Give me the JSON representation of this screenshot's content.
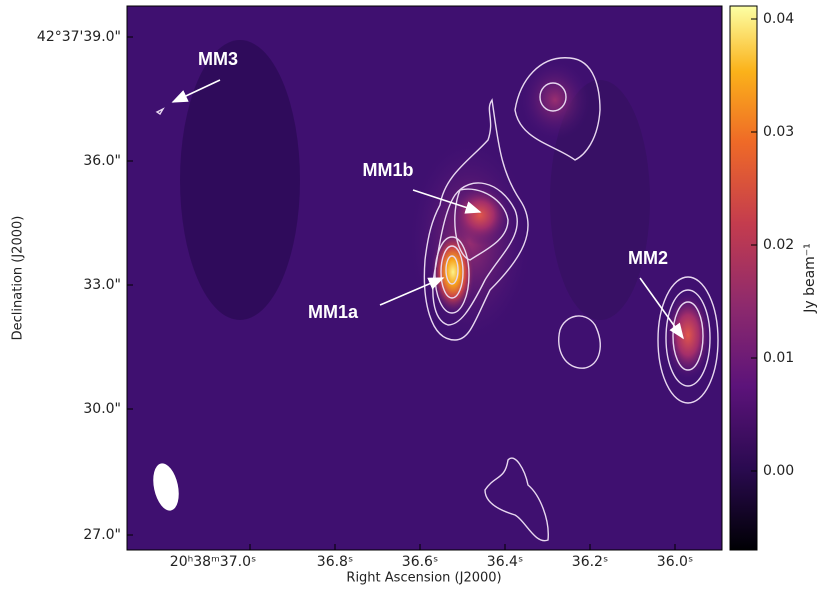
{
  "figure": {
    "x_axis": {
      "label": "Right Ascension (J2000)",
      "ticks": [
        "20ʰ38ᵐ37.0ˢ",
        "36.8ˢ",
        "36.6ˢ",
        "36.4ˢ",
        "36.2ˢ",
        "36.0ˢ"
      ]
    },
    "y_axis": {
      "label": "Declination (J2000)",
      "ticks": [
        "42°37'39.0\"",
        "36.0\"",
        "33.0\"",
        "30.0\"",
        "27.0\""
      ]
    },
    "colorbar": {
      "label": "Jy beam⁻¹",
      "ticks": [
        "0.04",
        "0.03",
        "0.02",
        "0.01",
        "0.00"
      ]
    },
    "annotations": [
      "MM3",
      "MM1b",
      "MM1a",
      "MM2"
    ]
  }
}
